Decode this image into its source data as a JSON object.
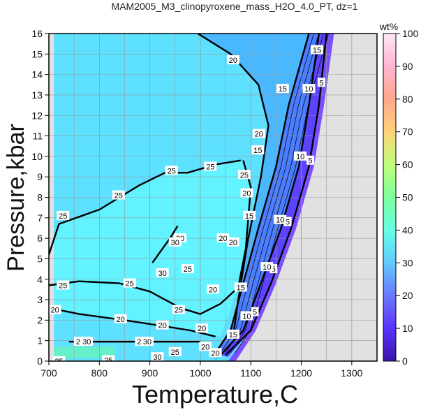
{
  "chart_data": {
    "type": "heatmap",
    "title": "MAM2005_M3_clinopyroxene_mass_H2O_4.0_PT, dz=1",
    "xlabel": "Temperature,C",
    "ylabel": "Pressure,kbar",
    "xlim": [
      700,
      1350
    ],
    "ylim": [
      0,
      16
    ],
    "xticks": [
      700,
      800,
      900,
      1000,
      1100,
      1200,
      1300
    ],
    "yticks": [
      0,
      1,
      2,
      3,
      4,
      5,
      6,
      7,
      8,
      9,
      10,
      11,
      12,
      13,
      14,
      15,
      16
    ],
    "grid": true,
    "colorbar": {
      "label": "wt%",
      "min": 0,
      "max": 100,
      "ticks": [
        0,
        10,
        20,
        30,
        40,
        50,
        60,
        70,
        80,
        90,
        100
      ],
      "colors": [
        "#3a14a8",
        "#5a32ff",
        "#6a78ff",
        "#63c8ff",
        "#64ffe6",
        "#7dff9b",
        "#c0ff7a",
        "#ffd27a",
        "#ffa78c",
        "#ffb4d2",
        "#ffe6f5"
      ]
    },
    "colors": {
      "no_data": "#e1e1e1",
      "fill_20_25": "#5ee0ff",
      "fill_25_30": "#63f2ff",
      "fill_low": "#5c44ff",
      "patch_30_plus": "#64f0c8"
    },
    "contours": [
      {
        "value": 5,
        "points": [
          [
            1050,
            0.3
          ],
          [
            1100,
            1.5
          ],
          [
            1140,
            3.8
          ],
          [
            1180,
            6.5
          ],
          [
            1215,
            9.5
          ],
          [
            1235,
            12.5
          ],
          [
            1250,
            16
          ]
        ]
      },
      {
        "value": 10,
        "points": [
          [
            1040,
            0.3
          ],
          [
            1085,
            1.5
          ],
          [
            1120,
            3.8
          ],
          [
            1160,
            6.5
          ],
          [
            1195,
            9.5
          ],
          [
            1215,
            12.5
          ],
          [
            1235,
            16
          ]
        ]
      },
      {
        "value": 15,
        "points": [
          [
            1030,
            0.4
          ],
          [
            1060,
            1.5
          ],
          [
            1085,
            3.8
          ],
          [
            1115,
            6.5
          ],
          [
            1150,
            9.5
          ],
          [
            1175,
            12.5
          ],
          [
            1215,
            16
          ]
        ]
      },
      {
        "value": 20,
        "points": [
          [
            1065,
            1.2
          ],
          [
            1075,
            3
          ],
          [
            1095,
            6
          ],
          [
            1120,
            9
          ],
          [
            1135,
            11.5
          ],
          [
            1115,
            13.5
          ],
          [
            1060,
            15
          ],
          [
            995,
            16
          ]
        ]
      },
      {
        "value": 20,
        "points": [
          [
            700,
            2.6
          ],
          [
            760,
            2.3
          ],
          [
            850,
            2.0
          ],
          [
            930,
            1.7
          ],
          [
            980,
            1.5
          ],
          [
            1030,
            1.2
          ]
        ]
      },
      {
        "value": 25,
        "points": [
          [
            700,
            3.7
          ],
          [
            760,
            3.9
          ],
          [
            840,
            3.8
          ],
          [
            900,
            3.4
          ],
          [
            960,
            2.6
          ],
          [
            1000,
            2.3
          ],
          [
            1040,
            2.8
          ],
          [
            1075,
            3.6
          ],
          [
            1090,
            5.5
          ],
          [
            1100,
            8.5
          ],
          [
            1085,
            9.8
          ]
        ]
      },
      {
        "value": 25,
        "points": [
          [
            700,
            5.2
          ],
          [
            720,
            6.7
          ],
          [
            800,
            7.4
          ],
          [
            880,
            8.6
          ],
          [
            930,
            9.2
          ],
          [
            975,
            9.2
          ],
          [
            1030,
            9.6
          ],
          [
            1080,
            9.8
          ]
        ]
      },
      {
        "value": 30,
        "points": [
          [
            905,
            4.8
          ],
          [
            940,
            6.0
          ],
          [
            955,
            6.6
          ]
        ]
      },
      {
        "value": 20,
        "points": [
          [
            740,
            0.95
          ],
          [
            1000,
            0.95
          ]
        ]
      }
    ],
    "contour_labels": [
      {
        "text": "5",
        "x": 1218,
        "y": 9.8
      },
      {
        "text": "5",
        "x": 1173,
        "y": 6.8
      },
      {
        "text": "5",
        "x": 1145,
        "y": 4.5
      },
      {
        "text": "5",
        "x": 1108,
        "y": 2.4
      },
      {
        "text": "5",
        "x": 1240,
        "y": 13.6
      },
      {
        "text": "10",
        "x": 1198,
        "y": 10.0
      },
      {
        "text": "10",
        "x": 1158,
        "y": 6.9
      },
      {
        "text": "10",
        "x": 1132,
        "y": 4.6
      },
      {
        "text": "10",
        "x": 1092,
        "y": 2.2
      },
      {
        "text": "10",
        "x": 1215,
        "y": 13.3
      },
      {
        "text": "15",
        "x": 1163,
        "y": 13.3
      },
      {
        "text": "15",
        "x": 1114,
        "y": 10.3
      },
      {
        "text": "15",
        "x": 1097,
        "y": 7.1
      },
      {
        "text": "15",
        "x": 1080,
        "y": 3.6
      },
      {
        "text": "15",
        "x": 1065,
        "y": 1.3
      },
      {
        "text": "15",
        "x": 1231,
        "y": 15.2
      },
      {
        "text": "20",
        "x": 1065,
        "y": 14.7
      },
      {
        "text": "20",
        "x": 1116,
        "y": 11.1
      },
      {
        "text": "20",
        "x": 1092,
        "y": 8.2
      },
      {
        "text": "20",
        "x": 1045,
        "y": 6.0
      },
      {
        "text": "20",
        "x": 1025,
        "y": 3.5
      },
      {
        "text": "20",
        "x": 1065,
        "y": 5.8
      },
      {
        "text": "20",
        "x": 1010,
        "y": 0.7
      },
      {
        "text": "20",
        "x": 1030,
        "y": 0.4
      },
      {
        "text": "20",
        "x": 1003,
        "y": 1.6
      },
      {
        "text": "20",
        "x": 925,
        "y": 1.75
      },
      {
        "text": "20",
        "x": 842,
        "y": 2.05
      },
      {
        "text": "20",
        "x": 712,
        "y": 2.5
      },
      {
        "text": "20",
        "x": 762,
        "y": 0.95
      },
      {
        "text": "25",
        "x": 1087,
        "y": 9.1
      },
      {
        "text": "25",
        "x": 1020,
        "y": 9.5
      },
      {
        "text": "25",
        "x": 943,
        "y": 9.3
      },
      {
        "text": "25",
        "x": 838,
        "y": 8.1
      },
      {
        "text": "25",
        "x": 728,
        "y": 7.1
      },
      {
        "text": "25",
        "x": 860,
        "y": 3.8
      },
      {
        "text": "25",
        "x": 957,
        "y": 2.5
      },
      {
        "text": "25",
        "x": 975,
        "y": 4.5
      },
      {
        "text": "25",
        "x": 728,
        "y": 3.7
      },
      {
        "text": "25",
        "x": 883,
        "y": 0.95
      },
      {
        "text": "25",
        "x": 950,
        "y": 0.45
      },
      {
        "text": "25",
        "x": 818,
        "y": 0.05
      },
      {
        "text": "25",
        "x": 720,
        "y": 0.0
      },
      {
        "text": "30",
        "x": 960,
        "y": 6.0
      },
      {
        "text": "30",
        "x": 950,
        "y": 5.8
      },
      {
        "text": "30",
        "x": 895,
        "y": 0.95
      },
      {
        "text": "30",
        "x": 775,
        "y": 0.95
      },
      {
        "text": "30",
        "x": 915,
        "y": 0.2
      },
      {
        "text": "30",
        "x": 925,
        "y": 4.3
      }
    ]
  }
}
